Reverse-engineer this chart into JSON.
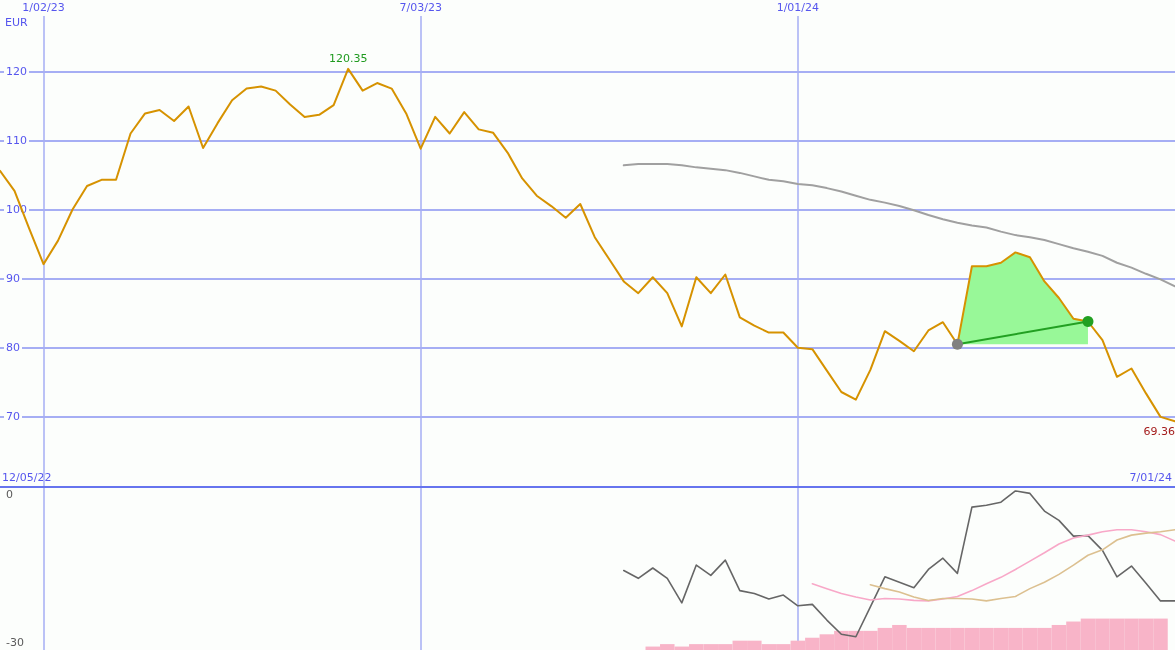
{
  "chart_data": [
    {
      "type": "line",
      "ylabel": "EUR",
      "annotations": [
        "12/05/22",
        "7/01/24"
      ],
      "x": [
        "2022-12-12",
        "2022-12-19",
        "2022-12-26",
        "2023-01-02",
        "2023-01-09",
        "2023-01-16",
        "2023-01-23",
        "2023-01-30",
        "2023-02-06",
        "2023-02-13",
        "2023-02-20",
        "2023-02-27",
        "2023-03-06",
        "2023-03-13",
        "2023-03-20",
        "2023-03-27",
        "2023-04-03",
        "2023-04-10",
        "2023-04-17",
        "2023-04-24",
        "2023-05-01",
        "2023-05-08",
        "2023-05-15",
        "2023-05-22",
        "2023-05-29",
        "2023-06-05",
        "2023-06-12",
        "2023-06-19",
        "2023-06-26",
        "2023-07-03",
        "2023-07-10",
        "2023-07-17",
        "2023-07-24",
        "2023-07-31",
        "2023-08-07",
        "2023-08-14",
        "2023-08-21",
        "2023-08-28",
        "2023-09-04",
        "2023-09-11",
        "2023-09-18",
        "2023-09-25",
        "2023-10-02",
        "2023-10-09",
        "2023-10-16",
        "2023-10-23",
        "2023-10-30",
        "2023-11-06",
        "2023-11-13",
        "2023-11-20",
        "2023-11-27",
        "2023-12-04",
        "2023-12-11",
        "2023-12-18",
        "2023-12-25",
        "2024-01-01",
        "2024-01-08",
        "2024-01-15",
        "2024-01-22",
        "2024-01-29",
        "2024-02-05",
        "2024-02-12",
        "2024-02-19",
        "2024-02-26",
        "2024-03-04",
        "2024-03-11",
        "2024-03-18",
        "2024-03-25",
        "2024-04-01",
        "2024-04-08",
        "2024-04-15",
        "2024-04-22",
        "2024-04-29",
        "2024-05-06",
        "2024-05-13",
        "2024-05-20",
        "2024-05-27",
        "2024-06-03",
        "2024-06-10",
        "2024-06-17",
        "2024-06-24",
        "2024-07-01"
      ],
      "xlim": [
        "2022-12-12",
        "2024-07-01"
      ],
      "xticks": [
        {
          "value": "2023-01-02",
          "label": "1/02/23"
        },
        {
          "value": "2023-07-03",
          "label": "7/03/23"
        },
        {
          "value": "2024-01-01",
          "label": "1/01/24"
        }
      ],
      "ylim": [
        60,
        128
      ],
      "yticks": [
        70,
        80,
        90,
        100,
        110,
        120
      ],
      "grid": true,
      "series": [
        {
          "color": "#d69200",
          "values": [
            105.6,
            102.7,
            97.3,
            92.1,
            95.5,
            100.0,
            103.4,
            104.3,
            104.3,
            111.0,
            113.9,
            114.4,
            112.8,
            114.9,
            108.9,
            112.5,
            115.8,
            117.5,
            117.8,
            117.2,
            115.2,
            113.4,
            113.7,
            115.1,
            120.35,
            117.2,
            118.3,
            117.5,
            113.9,
            108.8,
            113.4,
            111.0,
            114.1,
            111.6,
            111.1,
            108.2,
            104.5,
            102.0,
            100.5,
            98.8,
            100.8,
            96.0,
            92.8,
            89.6,
            87.9,
            90.2,
            87.9,
            83.1,
            90.2,
            87.9,
            90.6,
            84.4,
            83.2,
            82.2,
            82.2,
            80.0,
            79.8,
            76.7,
            73.6,
            72.5,
            76.8,
            82.4,
            81.0,
            79.5,
            82.5,
            83.7,
            80.5,
            91.8,
            91.8,
            92.3,
            93.8,
            93.1,
            89.6,
            87.2,
            84.2,
            83.8,
            81.1,
            75.8,
            77.0,
            73.4,
            70.0,
            69.36
          ],
          "value_labels": [
            null,
            null,
            null,
            null,
            null,
            null,
            null,
            null,
            null,
            null,
            null,
            null,
            null,
            null,
            null,
            null,
            null,
            null,
            null,
            null,
            null,
            null,
            null,
            null,
            "120.35",
            null,
            null,
            null,
            null,
            null,
            null,
            null,
            null,
            null,
            null,
            null,
            null,
            null,
            null,
            null,
            null,
            null,
            null,
            null,
            null,
            null,
            null,
            null,
            null,
            null,
            null,
            null,
            null,
            null,
            null,
            null,
            null,
            null,
            null,
            null,
            null,
            null,
            null,
            null,
            null,
            null,
            null,
            null,
            null,
            null,
            null,
            null,
            null,
            null,
            null,
            null,
            null,
            null,
            null,
            null,
            null,
            "69.36"
          ],
          "lower": [
            null,
            null,
            null,
            null,
            null,
            null,
            null,
            null,
            null,
            null,
            null,
            null,
            null,
            null,
            null,
            null,
            null,
            null,
            null,
            null,
            null,
            null,
            null,
            null,
            null,
            null,
            null,
            null,
            null,
            null,
            null,
            null,
            null,
            null,
            null,
            null,
            null,
            null,
            null,
            null,
            null,
            null,
            null,
            null,
            null,
            null,
            null,
            null,
            null,
            null,
            null,
            null,
            null,
            null,
            null,
            null,
            null,
            null,
            null,
            null,
            null,
            null,
            null,
            null,
            null,
            null,
            80.5,
            80.5,
            80.5,
            80.5,
            80.5,
            80.5,
            80.5,
            80.5,
            80.5,
            80.5,
            null,
            null,
            null,
            null,
            null,
            null
          ],
          "upper": [
            null,
            null,
            null,
            null,
            null,
            null,
            null,
            null,
            null,
            null,
            null,
            null,
            null,
            null,
            null,
            null,
            null,
            null,
            null,
            null,
            null,
            null,
            null,
            null,
            null,
            null,
            null,
            null,
            null,
            null,
            null,
            null,
            null,
            null,
            null,
            null,
            null,
            null,
            null,
            null,
            null,
            null,
            null,
            null,
            null,
            null,
            null,
            null,
            null,
            null,
            null,
            null,
            null,
            null,
            null,
            null,
            null,
            null,
            null,
            null,
            null,
            null,
            null,
            null,
            null,
            null,
            80.5,
            91.8,
            91.8,
            92.3,
            93.8,
            93.1,
            89.6,
            87.2,
            84.2,
            83.8,
            null,
            null,
            null,
            null,
            null,
            null
          ]
        },
        {
          "color": "#a0a0a0",
          "x": [
            "2023-10-09",
            "2023-10-16",
            "2023-10-23",
            "2023-10-30",
            "2023-11-06",
            "2023-11-13",
            "2023-11-20",
            "2023-11-27",
            "2023-12-04",
            "2023-12-11",
            "2023-12-18",
            "2023-12-25",
            "2024-01-01",
            "2024-01-08",
            "2024-01-15",
            "2024-01-22",
            "2024-01-29",
            "2024-02-05",
            "2024-02-12",
            "2024-02-19",
            "2024-02-26",
            "2024-03-04",
            "2024-03-11",
            "2024-03-18",
            "2024-03-25",
            "2024-04-01",
            "2024-04-08",
            "2024-04-15",
            "2024-04-22",
            "2024-04-29",
            "2024-05-06",
            "2024-05-13",
            "2024-05-20",
            "2024-05-27",
            "2024-06-03",
            "2024-06-10",
            "2024-06-17",
            "2024-06-24",
            "2024-07-01"
          ],
          "values": [
            106.4,
            106.6,
            106.6,
            106.6,
            106.4,
            106.1,
            105.9,
            105.7,
            105.3,
            104.8,
            104.3,
            104.1,
            103.7,
            103.5,
            103.1,
            102.6,
            102.0,
            101.4,
            101.0,
            100.5,
            99.9,
            99.2,
            98.6,
            98.1,
            97.7,
            97.4,
            96.8,
            96.3,
            96.0,
            95.6,
            95.0,
            94.4,
            93.9,
            93.3,
            92.3,
            91.6,
            90.7,
            89.9,
            88.9
          ]
        },
        {
          "color": "#22a022",
          "x": [
            "2024-03-18",
            "2024-05-20"
          ],
          "values": [
            80.5,
            83.8
          ]
        },
        {
          "type": "scatter",
          "color": "#22a022",
          "x": [
            "2024-03-18",
            "2024-05-20"
          ],
          "values": [
            80.5,
            83.8
          ],
          "colors": [
            "#808080",
            "#22a022"
          ],
          "marker": "circle"
        }
      ]
    },
    {
      "type": "line",
      "xlim": [
        "2022-12-12",
        "2024-07-01"
      ],
      "xticks": [
        {
          "value": "2023-01-02",
          "label": null
        },
        {
          "value": "2023-07-03",
          "label": null
        },
        {
          "value": "2024-01-01",
          "label": null
        }
      ],
      "ylim": [
        -31.6,
        1.4
      ],
      "yticks": [
        -30,
        0
      ],
      "grid": "x",
      "tick_labels": "y",
      "series": [
        {
          "type": "bar",
          "color": "#f8b4c8",
          "x": [
            "2023-10-23",
            "2023-10-30",
            "2023-11-06",
            "2023-11-13",
            "2023-11-20",
            "2023-11-27",
            "2023-12-04",
            "2023-12-11",
            "2023-12-18",
            "2023-12-25",
            "2024-01-01",
            "2024-01-08",
            "2024-01-15",
            "2024-01-22",
            "2024-01-29",
            "2024-02-05",
            "2024-02-12",
            "2024-02-19",
            "2024-02-26",
            "2024-03-04",
            "2024-03-11",
            "2024-03-18",
            "2024-03-25",
            "2024-04-01",
            "2024-04-08",
            "2024-04-15",
            "2024-04-22",
            "2024-04-29",
            "2024-05-06",
            "2024-05-13",
            "2024-05-20",
            "2024-05-27",
            "2024-06-03",
            "2024-06-10",
            "2024-06-17",
            "2024-06-24"
          ],
          "values": [
            0.7,
            1.2,
            0.7,
            1.2,
            1.2,
            1.2,
            1.9,
            1.9,
            1.2,
            1.2,
            1.9,
            2.5,
            3.2,
            3.9,
            3.9,
            3.9,
            4.5,
            5.1,
            4.5,
            4.5,
            4.5,
            4.5,
            4.5,
            4.5,
            4.5,
            4.5,
            4.5,
            4.5,
            5.1,
            5.8,
            6.4,
            6.4,
            6.4,
            6.4,
            6.4,
            6.4
          ],
          "base": [
            -31.6,
            -31.6,
            -31.6,
            -31.6,
            -31.6,
            -31.6,
            -31.6,
            -31.6,
            -31.6,
            -31.6,
            -31.6,
            -31.6,
            -31.6,
            -31.6,
            -31.6,
            -31.6,
            -31.6,
            -31.6,
            -31.6,
            -31.6,
            -31.6,
            -31.6,
            -31.6,
            -31.6,
            -31.6,
            -31.6,
            -31.6,
            -31.6,
            -31.6,
            -31.6,
            -31.6,
            -31.6,
            -31.6,
            -31.6,
            -31.6,
            -31.6
          ]
        },
        {
          "color": "#666666",
          "x": [
            "2023-10-09",
            "2023-10-16",
            "2023-10-23",
            "2023-10-30",
            "2023-11-06",
            "2023-11-13",
            "2023-11-20",
            "2023-11-27",
            "2023-12-04",
            "2023-12-11",
            "2023-12-18",
            "2023-12-25",
            "2024-01-01",
            "2024-01-08",
            "2024-01-15",
            "2024-01-22",
            "2024-01-29",
            "2024-02-05",
            "2024-02-12",
            "2024-02-19",
            "2024-02-26",
            "2024-03-04",
            "2024-03-11",
            "2024-03-18",
            "2024-03-25",
            "2024-04-01",
            "2024-04-08",
            "2024-04-15",
            "2024-04-22",
            "2024-04-29",
            "2024-05-06",
            "2024-05-13",
            "2024-05-20",
            "2024-05-27",
            "2024-06-03",
            "2024-06-10",
            "2024-06-17",
            "2024-06-24",
            "2024-07-01"
          ],
          "values": [
            -15.4,
            -17.0,
            -14.9,
            -17.0,
            -22.0,
            -14.3,
            -16.4,
            -13.3,
            -19.5,
            -20.1,
            -21.2,
            -20.4,
            -22.6,
            -22.3,
            -25.5,
            -28.4,
            -28.9,
            -22.8,
            -16.7,
            -17.8,
            -18.9,
            -15.2,
            -12.9,
            -16.0,
            -2.5,
            -2.1,
            -1.5,
            0.8,
            0.3,
            -3.3,
            -5.2,
            -8.4,
            -8.3,
            -11.3,
            -16.7,
            -14.5,
            -18.0,
            -21.6,
            -21.6
          ]
        },
        {
          "color": "#f8a8c8",
          "x": [
            "2024-01-08",
            "2024-01-15",
            "2024-01-22",
            "2024-01-29",
            "2024-02-05",
            "2024-02-12",
            "2024-02-19",
            "2024-02-26",
            "2024-03-04",
            "2024-03-11",
            "2024-03-18",
            "2024-03-25",
            "2024-04-01",
            "2024-04-08",
            "2024-04-15",
            "2024-04-22",
            "2024-04-29",
            "2024-05-06",
            "2024-05-13",
            "2024-05-20",
            "2024-05-27",
            "2024-06-03",
            "2024-06-10",
            "2024-06-17",
            "2024-06-24",
            "2024-07-01"
          ],
          "values": [
            -18.1,
            -19.1,
            -20.1,
            -20.8,
            -21.4,
            -21.1,
            -21.2,
            -21.5,
            -21.6,
            -21.2,
            -20.7,
            -19.5,
            -18.1,
            -16.8,
            -15.2,
            -13.5,
            -11.8,
            -10.0,
            -8.8,
            -8.2,
            -7.5,
            -7.1,
            -7.1,
            -7.5,
            -8.1,
            -9.4
          ]
        },
        {
          "color": "#dcc090",
          "x": [
            "2024-02-05",
            "2024-02-12",
            "2024-02-19",
            "2024-02-26",
            "2024-03-04",
            "2024-03-11",
            "2024-03-18",
            "2024-03-25",
            "2024-04-01",
            "2024-04-08",
            "2024-04-15",
            "2024-04-22",
            "2024-04-29",
            "2024-05-06",
            "2024-05-13",
            "2024-05-20",
            "2024-05-27",
            "2024-06-03",
            "2024-06-10",
            "2024-06-17",
            "2024-06-24",
            "2024-07-01"
          ],
          "values": [
            -18.3,
            -19.1,
            -19.8,
            -20.8,
            -21.5,
            -21.1,
            -21.1,
            -21.2,
            -21.6,
            -21.1,
            -20.7,
            -19.1,
            -17.8,
            -16.2,
            -14.3,
            -12.3,
            -11.2,
            -9.2,
            -8.2,
            -7.8,
            -7.5,
            -7.1
          ]
        }
      ]
    }
  ]
}
